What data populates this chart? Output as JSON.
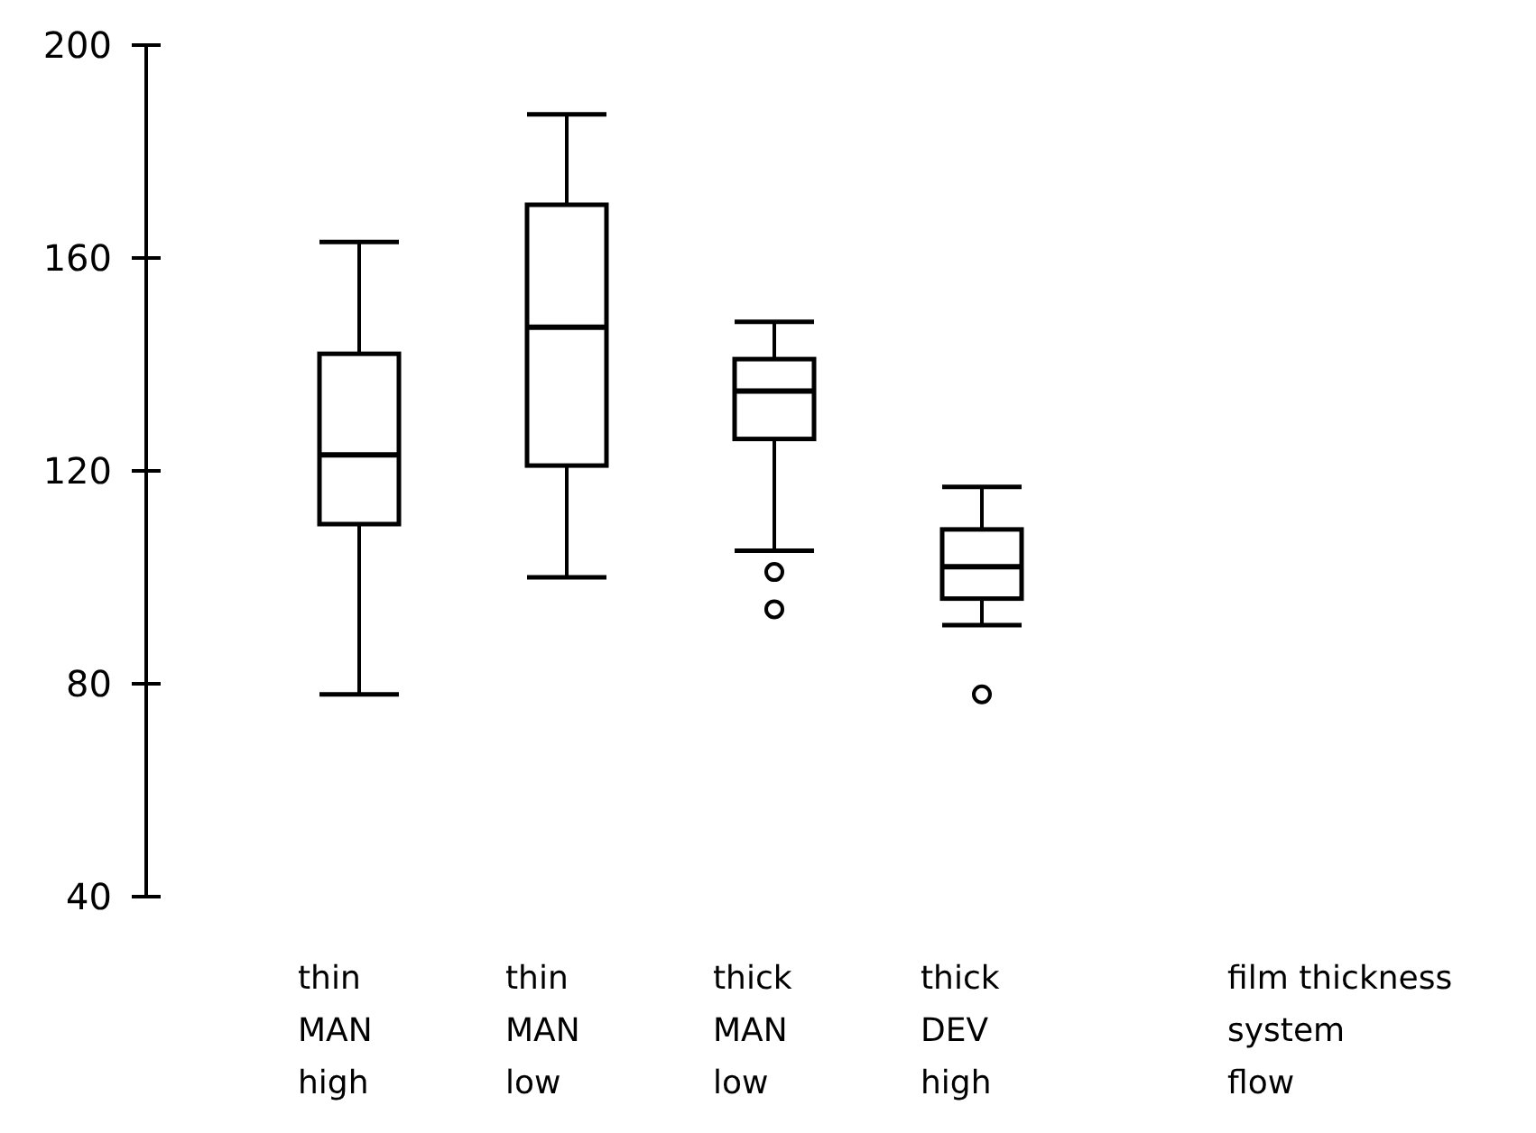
{
  "chart_data": {
    "type": "box",
    "categories": [
      "thin\nMAN\nhigh",
      "thin\nMAN\nlow",
      "thick\nMAN\nlow",
      "thick\nDEV\nhigh"
    ],
    "boxes": [
      {
        "low": 78,
        "q1": 110,
        "median": 123,
        "q3": 142,
        "high": 163
      },
      {
        "low": 100,
        "q1": 121,
        "median": 147,
        "q3": 170,
        "high": 187
      },
      {
        "low": 105,
        "q1": 126,
        "median": 135,
        "q3": 141,
        "high": 148,
        "outliers": [
          101,
          94
        ]
      },
      {
        "low": 91,
        "q1": 96,
        "median": 102,
        "q3": 109,
        "high": 117,
        "outliers": [
          78
        ]
      }
    ],
    "ylim": [
      40,
      200
    ],
    "yticks": [
      40,
      80,
      120,
      160,
      200
    ],
    "annotations": [
      "film thickness\nsystem\nflow"
    ]
  }
}
